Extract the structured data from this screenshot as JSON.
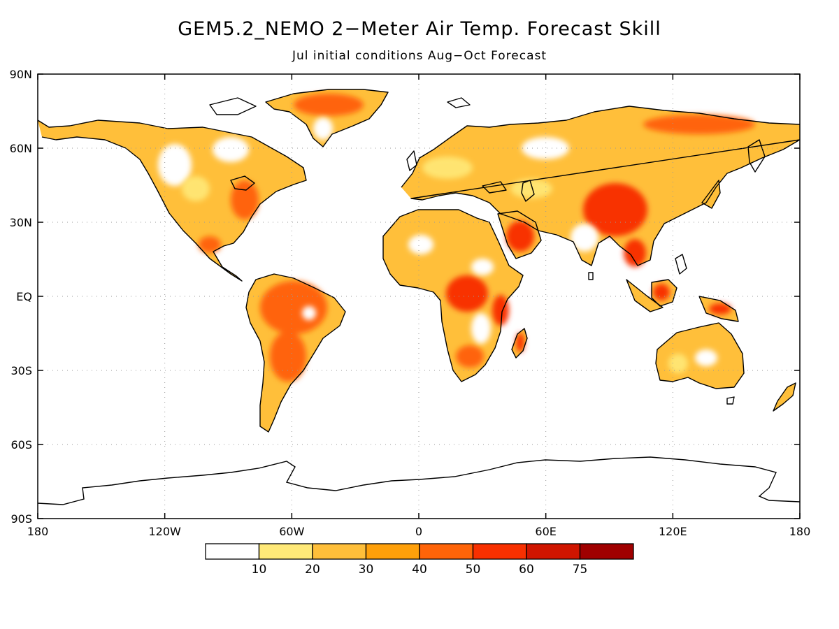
{
  "title": "GEM5.2_NEMO 2−Meter Air Temp. Forecast Skill",
  "subtitle": "Jul initial conditions   Aug−Oct Forecast",
  "map": {
    "lat_ticks": [
      {
        "value": 90,
        "label": "90N"
      },
      {
        "value": 60,
        "label": "60N"
      },
      {
        "value": 30,
        "label": "30N"
      },
      {
        "value": 0,
        "label": "EQ"
      },
      {
        "value": -30,
        "label": "30S"
      },
      {
        "value": -60,
        "label": "60S"
      },
      {
        "value": -90,
        "label": "90S"
      }
    ],
    "lon_ticks": [
      {
        "value": -180,
        "label": "180"
      },
      {
        "value": -120,
        "label": "120W"
      },
      {
        "value": -60,
        "label": "60W"
      },
      {
        "value": 0,
        "label": "0"
      },
      {
        "value": 60,
        "label": "60E"
      },
      {
        "value": 120,
        "label": "120E"
      },
      {
        "value": 180,
        "label": "180"
      }
    ],
    "grid": true,
    "land_outline_color": "#000000"
  },
  "colorbar": {
    "labels": [
      "10",
      "20",
      "30",
      "40",
      "50",
      "60",
      "75"
    ],
    "colors": [
      "#ffffff",
      "#ffe978",
      "#ffbf3a",
      "#ffa00a",
      "#ff6408",
      "#f83000",
      "#d01500",
      "#a00000"
    ]
  },
  "chart_data": {
    "type": "heatmap",
    "title": "GEM5.2_NEMO 2−Meter Air Temp. Forecast Skill",
    "subtitle": "Jul initial conditions   Aug−Oct Forecast",
    "xlim": [
      -180,
      180
    ],
    "ylim": [
      -90,
      90
    ],
    "grid": true,
    "colorbar_levels": [
      10,
      20,
      30,
      40,
      50,
      60,
      75
    ],
    "regions": [
      {
        "name": "",
        "lon": -140,
        "lat": 64,
        "value": 25
      },
      {
        "name": "",
        "lon": -100,
        "lat": 45,
        "value": 20
      },
      {
        "name": "",
        "lon": -80,
        "lat": 37,
        "value": 45
      },
      {
        "name": "",
        "lon": -100,
        "lat": 22,
        "value": 40
      },
      {
        "name": "",
        "lon": -40,
        "lat": 74,
        "value": 45
      },
      {
        "name": "",
        "lon": -62,
        "lat": -5,
        "value": 45
      },
      {
        "name": "",
        "lon": -62,
        "lat": -25,
        "value": 40
      },
      {
        "name": "",
        "lon": 10,
        "lat": 18,
        "value": 30
      },
      {
        "name": "",
        "lon": 30,
        "lat": 0,
        "value": 50
      },
      {
        "name": "",
        "lon": 22,
        "lat": -25,
        "value": 35
      },
      {
        "name": "",
        "lon": 46,
        "lat": 22,
        "value": 55
      },
      {
        "name": "",
        "lon": 50,
        "lat": 58,
        "value": 25
      },
      {
        "name": "",
        "lon": 120,
        "lat": 68,
        "value": 45
      },
      {
        "name": "",
        "lon": 95,
        "lat": 33,
        "value": 55
      },
      {
        "name": "",
        "lon": 100,
        "lat": 15,
        "value": 50
      },
      {
        "name": "",
        "lon": 114,
        "lat": 0,
        "value": 50
      },
      {
        "name": "",
        "lon": 134,
        "lat": -25,
        "value": 30
      },
      {
        "name": "",
        "lon": 145,
        "lat": -5,
        "value": 50
      }
    ]
  }
}
